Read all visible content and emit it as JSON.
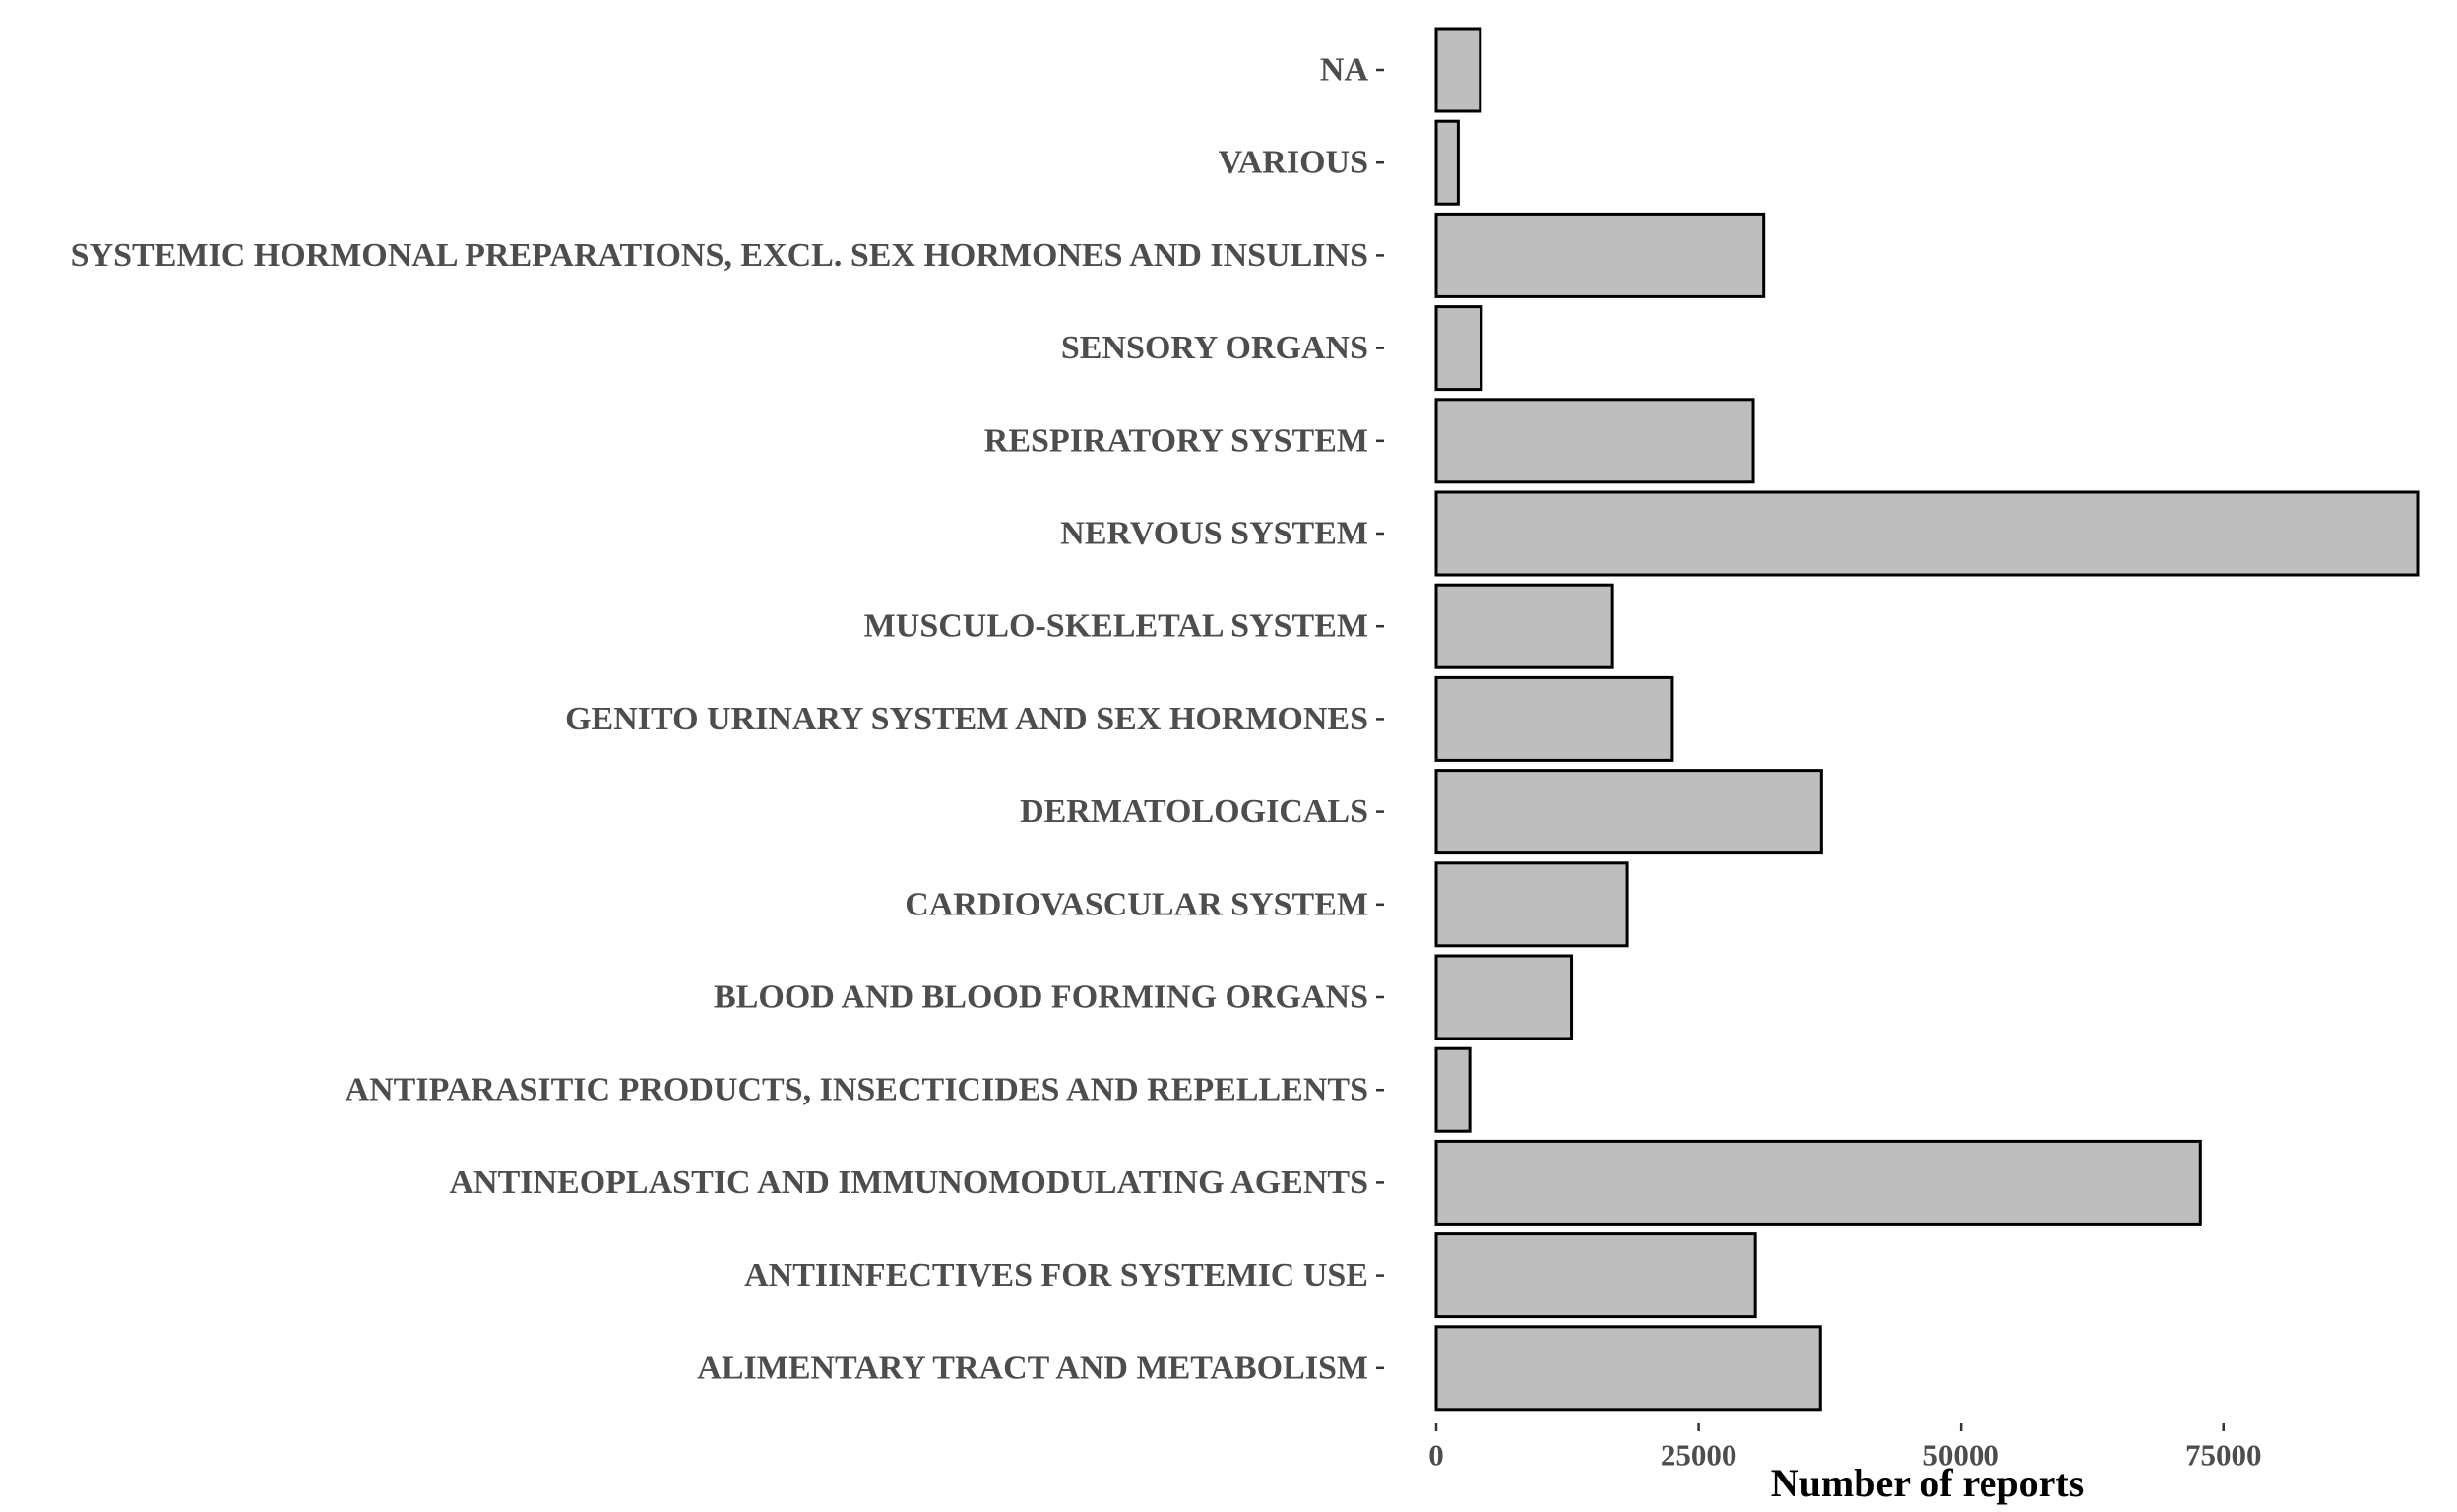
{
  "chart_data": {
    "type": "bar",
    "orientation": "horizontal",
    "categories": [
      "NA",
      "VARIOUS",
      "SYSTEMIC HORMONAL PREPARATIONS, EXCL. SEX HORMONES AND INSULINS",
      "SENSORY ORGANS",
      "RESPIRATORY SYSTEM",
      "NERVOUS SYSTEM",
      "MUSCULO-SKELETAL SYSTEM",
      "GENITO URINARY SYSTEM AND SEX HORMONES",
      "DERMATOLOGICALS",
      "CARDIOVASCULAR SYSTEM",
      "BLOOD AND BLOOD FORMING ORGANS",
      "ANTIPARASITIC PRODUCTS, INSECTICIDES AND REPELLENTS",
      "ANTINEOPLASTIC AND IMMUNOMODULATING AGENTS",
      "ANTIINFECTIVES FOR SYSTEMIC USE",
      "ALIMENTARY TRACT AND METABOLISM"
    ],
    "values": [
      4200,
      2100,
      31200,
      4300,
      30200,
      93500,
      16800,
      22500,
      36700,
      18200,
      12900,
      3200,
      72800,
      30400,
      36600
    ],
    "xlabel": "Number of reports",
    "ylabel": "",
    "title": "",
    "xlim": [
      0,
      93500
    ],
    "xticks": [
      0,
      25000,
      50000,
      75000
    ],
    "xtick_labels": [
      "0",
      "25000",
      "50000",
      "75000"
    ],
    "grid": false,
    "colors": {
      "bar_fill": "#bebebe",
      "bar_stroke": "#000000",
      "label_text": "#4d4d4d"
    }
  }
}
